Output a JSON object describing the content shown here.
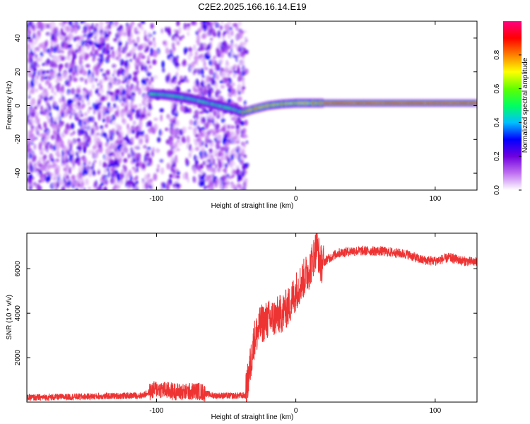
{
  "chart_data": [
    {
      "type": "heatmap",
      "title": "C2E2.2025.166.16.14.E19",
      "xlabel": "Height of straight line (km)",
      "ylabel": "Frequency (Hz)",
      "xlim": [
        -193,
        130
      ],
      "ylim": [
        -50,
        50
      ],
      "xticks": [
        "-100",
        "0",
        "100"
      ],
      "yticks": [
        "40",
        "20",
        "0",
        "-20",
        "-40"
      ],
      "colorbar": {
        "label": "Normalized spectral amplitude",
        "range": [
          0,
          1
        ],
        "ticks": [
          "0.0",
          "0.2",
          "0.4",
          "0.6",
          "0.8"
        ],
        "colors": [
          "#ffffff",
          "#c070f0",
          "#7000e0",
          "#0000ff",
          "#00c0ff",
          "#00ff60",
          "#60ff00",
          "#ffff00",
          "#ff8000",
          "#ff0000",
          "#ff0080"
        ]
      },
      "noise_region": {
        "x": [
          -193,
          -35
        ],
        "y": [
          -50,
          50
        ]
      },
      "ridge": [
        {
          "x": -105,
          "y": 7
        },
        {
          "x": -95,
          "y": 6.5
        },
        {
          "x": -85,
          "y": 5.5
        },
        {
          "x": -75,
          "y": 4
        },
        {
          "x": -65,
          "y": 2
        },
        {
          "x": -55,
          "y": 0
        },
        {
          "x": -45,
          "y": -2
        },
        {
          "x": -38,
          "y": -4
        },
        {
          "x": -30,
          "y": -2
        },
        {
          "x": -20,
          "y": 0
        },
        {
          "x": -10,
          "y": 1
        },
        {
          "x": 0,
          "y": 1.5
        },
        {
          "x": 20,
          "y": 1.5
        },
        {
          "x": 50,
          "y": 1.5
        },
        {
          "x": 80,
          "y": 1.5
        },
        {
          "x": 100,
          "y": 1.5
        },
        {
          "x": 130,
          "y": 1.5
        }
      ]
    },
    {
      "type": "line",
      "xlabel": "Height of straight line (km)",
      "ylabel": "SNR (10 * v/v)",
      "xlim": [
        -193,
        130
      ],
      "ylim": [
        0,
        7600
      ],
      "xticks": [
        "-100",
        "0",
        "100"
      ],
      "yticks": [
        "2000",
        "4000",
        "6000"
      ],
      "color": "#ee3333",
      "series": [
        {
          "x": [
            -193,
            -150,
            -110,
            -100,
            -90,
            -80,
            -70,
            -60,
            -45,
            -36,
            -33,
            -30,
            -25,
            -20,
            -15,
            -10,
            -5,
            0,
            5,
            10,
            15,
            18,
            22,
            30,
            40,
            60,
            80,
            90,
            100,
            110,
            120,
            130
          ],
          "values": [
            200,
            250,
            300,
            600,
            500,
            450,
            500,
            300,
            280,
            300,
            1500,
            2800,
            3500,
            3700,
            3800,
            4000,
            4300,
            5000,
            5500,
            6000,
            7000,
            6200,
            6400,
            6700,
            6800,
            6800,
            6650,
            6400,
            6350,
            6500,
            6350,
            6300
          ]
        }
      ]
    }
  ]
}
